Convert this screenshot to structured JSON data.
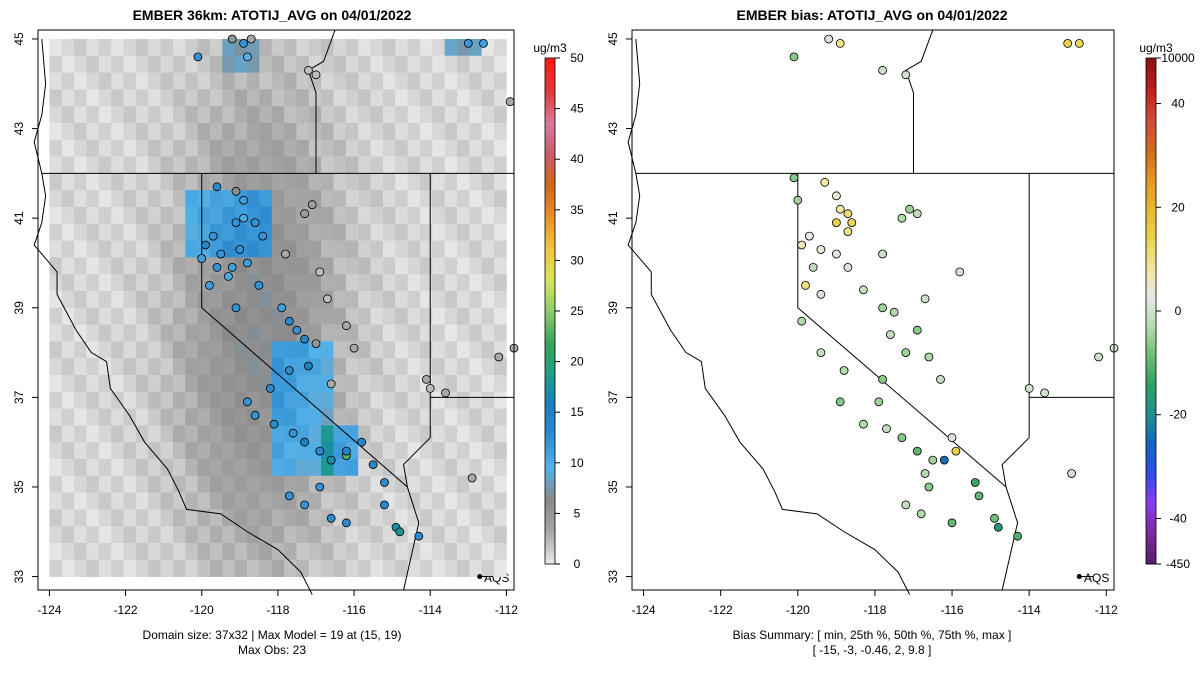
{
  "chart_data": [
    {
      "type": "heatmap",
      "title": "EMBER 36km: ATOTIJ_AVG on 04/01/2022",
      "xlabel": "",
      "ylabel": "",
      "xlim": [
        -124.3,
        -111.8
      ],
      "ylim": [
        32.7,
        45.2
      ],
      "x_ticks": [
        -124,
        -122,
        -120,
        -118,
        -116,
        -114,
        -112
      ],
      "y_ticks": [
        33,
        35,
        37,
        39,
        41,
        43,
        45
      ],
      "x_tick_labels": [
        "-124",
        "-122",
        "-120",
        "-118",
        "-116",
        "-114",
        "-112"
      ],
      "y_tick_labels": [
        "33",
        "35",
        "37",
        "39",
        "41",
        "43",
        "45"
      ],
      "legend": {
        "units": "ug/m3",
        "tick_values": [
          0,
          5,
          10,
          15,
          20,
          25,
          30,
          35,
          40,
          45,
          50
        ],
        "tick_labels": [
          "0",
          "5",
          "10",
          "15",
          "20",
          "25",
          "30",
          "35",
          "40",
          "45",
          "50"
        ],
        "colors": [
          "#e6e6e6",
          "#a6a6a6",
          "#8a8a8a",
          "#55b2e8",
          "#2f8cd0",
          "#1a7fbf",
          "#1f9f86",
          "#3aa45a",
          "#8cc96b",
          "#d6e65c",
          "#f0c53a",
          "#ea8f28",
          "#d06a18",
          "#c85a6b",
          "#d87a9d",
          "#e23a3a",
          "#ff1a1a"
        ]
      },
      "aqs_label": "AQS",
      "footer": [
        "Domain size: 37x32 | Max Model = 19 at (15, 19)",
        "Max Obs: 23"
      ],
      "observations": [
        {
          "lon": -119.2,
          "lat": 45.0,
          "v": 5
        },
        {
          "lon": -118.9,
          "lat": 44.9,
          "v": 12
        },
        {
          "lon": -118.7,
          "lat": 45.0,
          "v": 3
        },
        {
          "lon": -118.8,
          "lat": 44.6,
          "v": 9
        },
        {
          "lon": -117.2,
          "lat": 44.3,
          "v": 2
        },
        {
          "lon": -117.0,
          "lat": 44.2,
          "v": 2
        },
        {
          "lon": -113.0,
          "lat": 44.9,
          "v": 12
        },
        {
          "lon": -112.6,
          "lat": 44.9,
          "v": 11
        },
        {
          "lon": -111.9,
          "lat": 43.6,
          "v": 3
        },
        {
          "lon": -119.6,
          "lat": 41.7,
          "v": 13
        },
        {
          "lon": -119.1,
          "lat": 41.6,
          "v": 6
        },
        {
          "lon": -118.9,
          "lat": 41.4,
          "v": 11
        },
        {
          "lon": -118.9,
          "lat": 41.0,
          "v": 10
        },
        {
          "lon": -119.1,
          "lat": 40.9,
          "v": 12
        },
        {
          "lon": -118.6,
          "lat": 40.9,
          "v": 12
        },
        {
          "lon": -119.7,
          "lat": 40.6,
          "v": 12
        },
        {
          "lon": -119.9,
          "lat": 40.4,
          "v": 14
        },
        {
          "lon": -118.4,
          "lat": 40.6,
          "v": 12
        },
        {
          "lon": -117.3,
          "lat": 41.1,
          "v": 4
        },
        {
          "lon": -117.1,
          "lat": 41.3,
          "v": 4
        },
        {
          "lon": -116.9,
          "lat": 39.8,
          "v": 2
        },
        {
          "lon": -119.6,
          "lat": 39.9,
          "v": 12
        },
        {
          "lon": -119.2,
          "lat": 39.9,
          "v": 11
        },
        {
          "lon": -119.3,
          "lat": 39.7,
          "v": 10
        },
        {
          "lon": -119.8,
          "lat": 39.5,
          "v": 11
        },
        {
          "lon": -119.1,
          "lat": 39.0,
          "v": 12
        },
        {
          "lon": -117.9,
          "lat": 39.0,
          "v": 11
        },
        {
          "lon": -117.7,
          "lat": 38.7,
          "v": 13
        },
        {
          "lon": -117.5,
          "lat": 38.5,
          "v": 12
        },
        {
          "lon": -117.3,
          "lat": 38.3,
          "v": 14
        },
        {
          "lon": -117.0,
          "lat": 38.2,
          "v": 5
        },
        {
          "lon": -116.2,
          "lat": 38.6,
          "v": 3
        },
        {
          "lon": -116.0,
          "lat": 38.1,
          "v": 3
        },
        {
          "lon": -117.2,
          "lat": 37.7,
          "v": 16
        },
        {
          "lon": -116.6,
          "lat": 37.3,
          "v": 3
        },
        {
          "lon": -117.7,
          "lat": 37.6,
          "v": 13
        },
        {
          "lon": -118.2,
          "lat": 37.2,
          "v": 13
        },
        {
          "lon": -118.8,
          "lat": 36.9,
          "v": 12
        },
        {
          "lon": -118.6,
          "lat": 36.6,
          "v": 12
        },
        {
          "lon": -118.1,
          "lat": 36.4,
          "v": 13
        },
        {
          "lon": -117.6,
          "lat": 36.2,
          "v": 12
        },
        {
          "lon": -117.3,
          "lat": 36.0,
          "v": 15
        },
        {
          "lon": -116.9,
          "lat": 35.8,
          "v": 13
        },
        {
          "lon": -116.6,
          "lat": 35.6,
          "v": 17
        },
        {
          "lon": -116.2,
          "lat": 35.7,
          "v": 23
        },
        {
          "lon": -116.2,
          "lat": 35.8,
          "v": 14
        },
        {
          "lon": -115.8,
          "lat": 36.0,
          "v": 14
        },
        {
          "lon": -115.5,
          "lat": 35.5,
          "v": 14
        },
        {
          "lon": -115.2,
          "lat": 35.1,
          "v": 13
        },
        {
          "lon": -115.2,
          "lat": 34.6,
          "v": 14
        },
        {
          "lon": -114.9,
          "lat": 34.1,
          "v": 17
        },
        {
          "lon": -114.8,
          "lat": 34.0,
          "v": 18
        },
        {
          "lon": -116.2,
          "lat": 34.2,
          "v": 13
        },
        {
          "lon": -116.6,
          "lat": 34.3,
          "v": 13
        },
        {
          "lon": -117.3,
          "lat": 34.6,
          "v": 12
        },
        {
          "lon": -117.7,
          "lat": 34.8,
          "v": 12
        },
        {
          "lon": -116.9,
          "lat": 35.0,
          "v": 12
        },
        {
          "lon": -114.3,
          "lat": 33.9,
          "v": 13
        },
        {
          "lon": -112.9,
          "lat": 35.2,
          "v": 3
        },
        {
          "lon": -112.2,
          "lat": 37.9,
          "v": 3
        },
        {
          "lon": -111.8,
          "lat": 38.1,
          "v": 3
        },
        {
          "lon": -114.1,
          "lat": 37.4,
          "v": 3
        },
        {
          "lon": -114.0,
          "lat": 37.2,
          "v": 2
        },
        {
          "lon": -113.6,
          "lat": 37.1,
          "v": 3
        },
        {
          "lon": -116.7,
          "lat": 39.2,
          "v": 2
        },
        {
          "lon": -120.1,
          "lat": 44.6,
          "v": 12
        },
        {
          "lon": -117.8,
          "lat": 40.2,
          "v": 3
        },
        {
          "lon": -120.0,
          "lat": 40.1,
          "v": 11
        },
        {
          "lon": -119.5,
          "lat": 40.2,
          "v": 12
        },
        {
          "lon": -119.0,
          "lat": 40.3,
          "v": 12
        },
        {
          "lon": -118.8,
          "lat": 40.0,
          "v": 11
        },
        {
          "lon": -118.5,
          "lat": 39.5,
          "v": 12
        }
      ]
    },
    {
      "type": "scatter",
      "title": "EMBER bias: ATOTIJ_AVG on 04/01/2022",
      "xlabel": "",
      "ylabel": "",
      "xlim": [
        -124.3,
        -111.8
      ],
      "ylim": [
        32.7,
        45.2
      ],
      "x_ticks": [
        -124,
        -122,
        -120,
        -118,
        -116,
        -114,
        -112
      ],
      "y_ticks": [
        33,
        35,
        37,
        39,
        41,
        43,
        45
      ],
      "x_tick_labels": [
        "-124",
        "-122",
        "-120",
        "-118",
        "-116",
        "-114",
        "-112"
      ],
      "y_tick_labels": [
        "33",
        "35",
        "37",
        "39",
        "41",
        "43",
        "45"
      ],
      "legend": {
        "units": "ug/m3",
        "tick_labels": [
          "-450",
          "-40",
          "-20",
          "0",
          "20",
          "40",
          "10000"
        ],
        "colors": [
          "#5a1e6b",
          "#7a2ca0",
          "#8b3cf0",
          "#2f4ee8",
          "#1565c0",
          "#1f8f8f",
          "#2ea066",
          "#6ebc72",
          "#b6dcae",
          "#e8e8e8",
          "#f0e69a",
          "#e9d24a",
          "#e9b72e",
          "#e39525",
          "#cc6b1d",
          "#d04a3a",
          "#c02020",
          "#8b1414"
        ]
      },
      "aqs_label": "AQS",
      "footer": [
        "Bias Summary: [ min, 25th %, 50th %, 75th %, max ]",
        "[ -15,   -3,   -0.46,   2,   9.8 ]"
      ],
      "summary": {
        "min": -15,
        "p25": -3,
        "p50": -0.46,
        "p75": 2,
        "max": 9.8
      },
      "observations": [
        {
          "lon": -119.2,
          "lat": 45.0,
          "v": 1
        },
        {
          "lon": -118.9,
          "lat": 44.9,
          "v": 6
        },
        {
          "lon": -120.1,
          "lat": 44.6,
          "v": -4
        },
        {
          "lon": -117.8,
          "lat": 44.3,
          "v": 0
        },
        {
          "lon": -117.2,
          "lat": 44.2,
          "v": 0
        },
        {
          "lon": -113.0,
          "lat": 44.9,
          "v": 9
        },
        {
          "lon": -112.7,
          "lat": 44.9,
          "v": 8
        },
        {
          "lon": -119.3,
          "lat": 41.8,
          "v": 5
        },
        {
          "lon": -119.0,
          "lat": 41.5,
          "v": 3
        },
        {
          "lon": -118.9,
          "lat": 41.2,
          "v": 5
        },
        {
          "lon": -118.7,
          "lat": 41.1,
          "v": 7
        },
        {
          "lon": -118.6,
          "lat": 40.9,
          "v": 8
        },
        {
          "lon": -119.0,
          "lat": 40.9,
          "v": 9
        },
        {
          "lon": -118.7,
          "lat": 40.7,
          "v": 6
        },
        {
          "lon": -120.0,
          "lat": 41.4,
          "v": -3
        },
        {
          "lon": -120.1,
          "lat": 41.9,
          "v": -4
        },
        {
          "lon": -117.3,
          "lat": 41.0,
          "v": -2
        },
        {
          "lon": -117.1,
          "lat": 41.2,
          "v": -3
        },
        {
          "lon": -116.9,
          "lat": 41.1,
          "v": -1
        },
        {
          "lon": -119.7,
          "lat": 40.6,
          "v": 2
        },
        {
          "lon": -119.9,
          "lat": 40.4,
          "v": 4
        },
        {
          "lon": -119.4,
          "lat": 40.3,
          "v": 3
        },
        {
          "lon": -119.0,
          "lat": 40.2,
          "v": 2
        },
        {
          "lon": -119.6,
          "lat": 39.9,
          "v": -1
        },
        {
          "lon": -118.7,
          "lat": 39.9,
          "v": 1
        },
        {
          "lon": -119.8,
          "lat": 39.5,
          "v": 7
        },
        {
          "lon": -119.4,
          "lat": 39.3,
          "v": 1
        },
        {
          "lon": -118.3,
          "lat": 39.4,
          "v": -1
        },
        {
          "lon": -117.8,
          "lat": 39.0,
          "v": -3
        },
        {
          "lon": -117.5,
          "lat": 38.9,
          "v": -2
        },
        {
          "lon": -116.9,
          "lat": 38.5,
          "v": -4
        },
        {
          "lon": -117.6,
          "lat": 38.4,
          "v": -1
        },
        {
          "lon": -117.2,
          "lat": 38.0,
          "v": -3
        },
        {
          "lon": -116.6,
          "lat": 37.9,
          "v": -2
        },
        {
          "lon": -116.3,
          "lat": 37.4,
          "v": -1
        },
        {
          "lon": -117.8,
          "lat": 37.4,
          "v": -4
        },
        {
          "lon": -118.8,
          "lat": 37.6,
          "v": -2
        },
        {
          "lon": -118.9,
          "lat": 36.9,
          "v": -4
        },
        {
          "lon": -117.9,
          "lat": 36.9,
          "v": -3
        },
        {
          "lon": -118.3,
          "lat": 36.4,
          "v": -2
        },
        {
          "lon": -117.7,
          "lat": 36.3,
          "v": -1
        },
        {
          "lon": -117.3,
          "lat": 36.1,
          "v": -4
        },
        {
          "lon": -116.9,
          "lat": 35.8,
          "v": -6
        },
        {
          "lon": -116.5,
          "lat": 35.6,
          "v": -3
        },
        {
          "lon": -116.2,
          "lat": 35.6,
          "v": -15
        },
        {
          "lon": -115.9,
          "lat": 35.8,
          "v": 9
        },
        {
          "lon": -116.0,
          "lat": 36.1,
          "v": 1
        },
        {
          "lon": -115.4,
          "lat": 35.1,
          "v": -8
        },
        {
          "lon": -115.3,
          "lat": 34.8,
          "v": -6
        },
        {
          "lon": -114.8,
          "lat": 34.1,
          "v": -11
        },
        {
          "lon": -114.9,
          "lat": 34.3,
          "v": -5
        },
        {
          "lon": -114.3,
          "lat": 33.9,
          "v": -7
        },
        {
          "lon": -116.0,
          "lat": 34.2,
          "v": -6
        },
        {
          "lon": -116.8,
          "lat": 34.4,
          "v": -2
        },
        {
          "lon": -117.2,
          "lat": 34.6,
          "v": -1
        },
        {
          "lon": -116.6,
          "lat": 35.0,
          "v": -4
        },
        {
          "lon": -116.7,
          "lat": 35.3,
          "v": -2
        },
        {
          "lon": -112.9,
          "lat": 35.3,
          "v": 0
        },
        {
          "lon": -112.2,
          "lat": 37.9,
          "v": 0
        },
        {
          "lon": -111.8,
          "lat": 38.1,
          "v": 0
        },
        {
          "lon": -114.0,
          "lat": 37.2,
          "v": 0
        },
        {
          "lon": -113.6,
          "lat": 37.1,
          "v": 0
        },
        {
          "lon": -116.7,
          "lat": 39.2,
          "v": 0
        },
        {
          "lon": -115.8,
          "lat": 39.8,
          "v": 0
        },
        {
          "lon": -117.8,
          "lat": 40.2,
          "v": 0
        },
        {
          "lon": -119.9,
          "lat": 38.7,
          "v": -2
        },
        {
          "lon": -119.4,
          "lat": 38.0,
          "v": -1
        }
      ]
    }
  ]
}
